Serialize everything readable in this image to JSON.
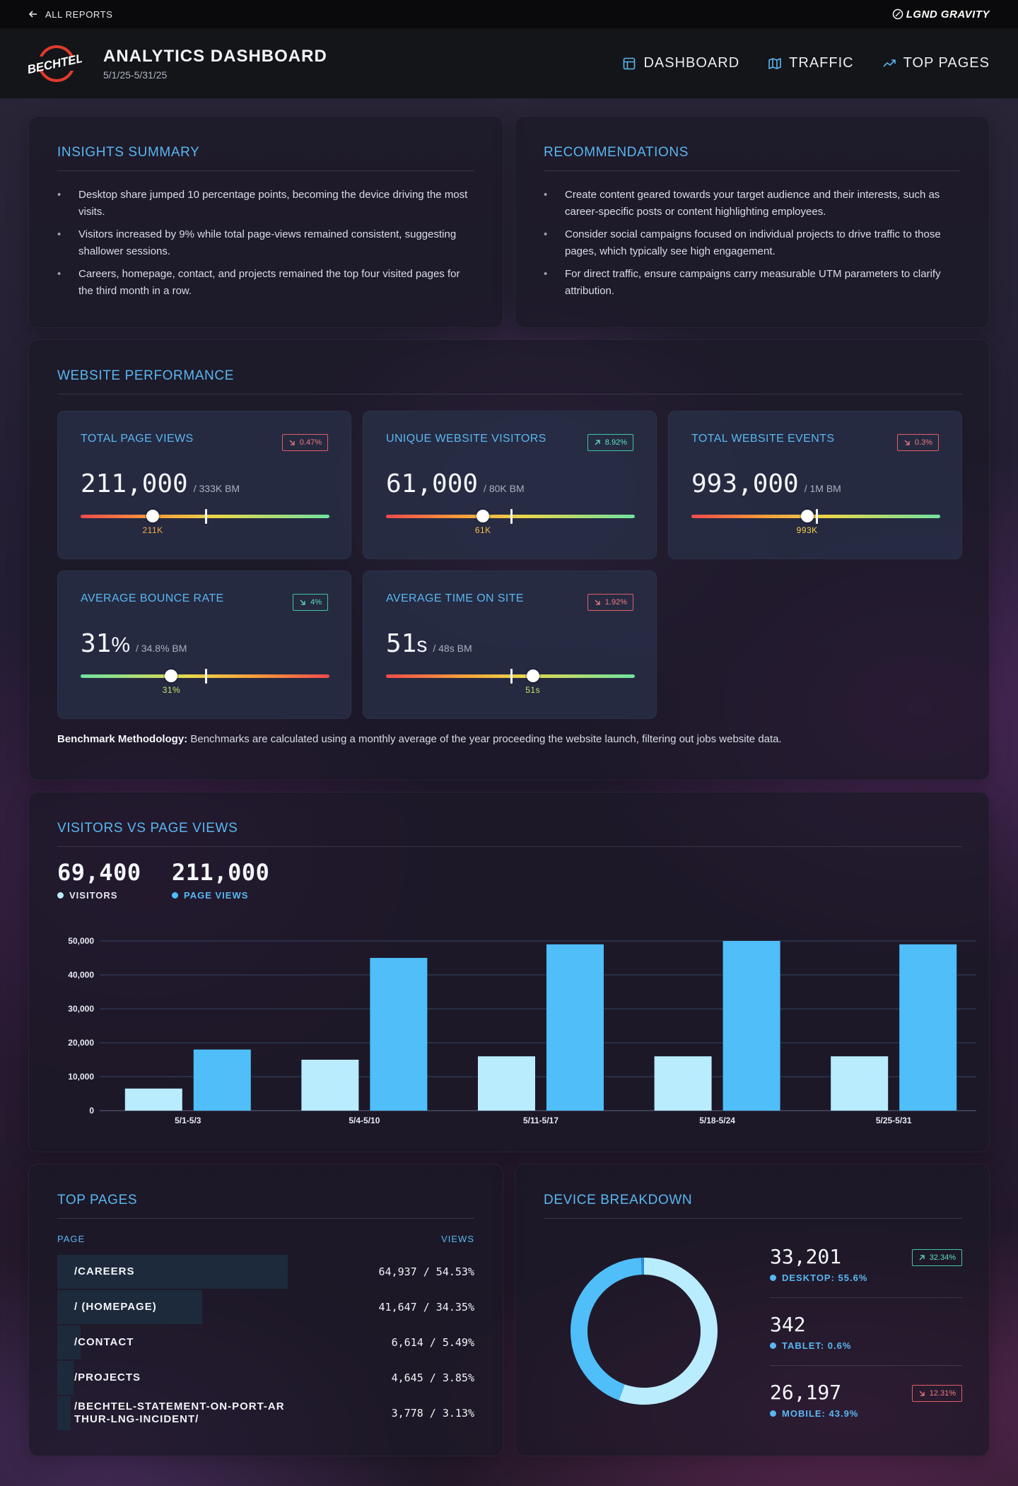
{
  "topbar": {
    "back_label": "ALL REPORTS",
    "brand": "LGND GRAVITY"
  },
  "header": {
    "logo_text": "BECHTEL",
    "title": "ANALYTICS DASHBOARD",
    "date_range": "5/1/25-5/31/25",
    "nav": [
      {
        "label": "DASHBOARD",
        "icon": "layout-icon"
      },
      {
        "label": "TRAFFIC",
        "icon": "map-icon"
      },
      {
        "label": "TOP PAGES",
        "icon": "trending-up-icon"
      }
    ]
  },
  "insights": {
    "title": "INSIGHTS SUMMARY",
    "items": [
      "Desktop share jumped 10 percentage points, becoming the device driving the most visits.",
      "Visitors increased by 9% while total page-views remained consistent, suggesting shallower sessions.",
      "Careers, homepage, contact, and projects remained the top four visited pages for the third month in a row."
    ]
  },
  "recommendations": {
    "title": "RECOMMENDATIONS",
    "items": [
      "Create content geared towards your target audience and their interests, such as career-specific posts or content highlighting employees.",
      "Consider social campaigns focused on individual projects to drive traffic to those pages, which typically see high engagement.",
      "For direct traffic, ensure campaigns carry measurable UTM parameters to clarify attribution."
    ]
  },
  "performance": {
    "title": "WEBSITE PERFORMANCE",
    "kpis": [
      {
        "label": "TOTAL PAGE VIEWS",
        "badge": "0.47%",
        "trend": "down",
        "value": "211,000",
        "unit": "",
        "benchmark": "/ 333K BM",
        "knob_label": "211K",
        "knob_fraction": 0.29,
        "tick_fraction": 0.5,
        "scale": "good",
        "knob_color": "#f5a84a"
      },
      {
        "label": "UNIQUE WEBSITE VISITORS",
        "badge": "8.92%",
        "trend": "up",
        "value": "61,000",
        "unit": "",
        "benchmark": "/ 80K BM",
        "knob_label": "61K",
        "knob_fraction": 0.39,
        "tick_fraction": 0.5,
        "scale": "good",
        "knob_color": "#f5c04a"
      },
      {
        "label": "TOTAL WEBSITE EVENTS",
        "badge": "0.3%",
        "trend": "down",
        "value": "993,000",
        "unit": "",
        "benchmark": "/ 1M BM",
        "knob_label": "993K",
        "knob_fraction": 0.465,
        "tick_fraction": 0.5,
        "scale": "good",
        "knob_color": "#f5d04a"
      },
      {
        "label": "AVERAGE BOUNCE RATE",
        "badge": "4%",
        "trend": "up-green-down",
        "value": "31",
        "unit": "%",
        "benchmark": "/ 34.8% BM",
        "knob_label": "31%",
        "knob_fraction": 0.365,
        "tick_fraction": 0.5,
        "scale": "bad",
        "knob_color": "#c9e36a"
      },
      {
        "label": "AVERAGE TIME ON SITE",
        "badge": "1.92%",
        "trend": "down",
        "value": "51",
        "unit": "s",
        "benchmark": "/ 48s BM",
        "knob_label": "51s",
        "knob_fraction": 0.59,
        "tick_fraction": 0.5,
        "scale": "good",
        "knob_color": "#c9e36a"
      }
    ],
    "methodology_label": "Benchmark Methodology:",
    "methodology_text": "Benchmarks are calculated using a monthly average of the year proceeding the website launch, filtering out jobs website data."
  },
  "visitors_chart": {
    "title": "VISITORS VS PAGE VIEWS",
    "visitors_total": "69,400",
    "visitors_label": "VISITORS",
    "pageviews_total": "211,000",
    "pageviews_label": "PAGE VIEWS"
  },
  "chart_data": {
    "type": "bar",
    "title": "VISITORS VS PAGE VIEWS",
    "categories": [
      "5/1-5/3",
      "5/4-5/10",
      "5/11-5/17",
      "5/18-5/24",
      "5/25-5/31"
    ],
    "series": [
      {
        "name": "VISITORS",
        "color": "#b9ecfd",
        "values": [
          6500,
          15000,
          16000,
          16000,
          16000
        ]
      },
      {
        "name": "PAGE VIEWS",
        "color": "#4fbef9",
        "values": [
          18000,
          45000,
          49000,
          50000,
          49000
        ]
      }
    ],
    "yticks": [
      0,
      10000,
      20000,
      30000,
      40000,
      50000
    ],
    "ytick_labels": [
      "0",
      "10,000",
      "20,000",
      "30,000",
      "40,000",
      "50,000"
    ],
    "ylim": [
      0,
      50000
    ],
    "xlabel": "",
    "ylabel": "",
    "grid": true
  },
  "top_pages": {
    "title": "TOP PAGES",
    "col_page": "PAGE",
    "col_views": "VIEWS",
    "rows": [
      {
        "page": "/CAREERS",
        "value": "64,937 / 54.53%",
        "share": 54.53
      },
      {
        "page": "/ (HOMEPAGE)",
        "value": "41,647 / 34.35%",
        "share": 34.35
      },
      {
        "page": "/CONTACT",
        "value": "6,614 / 5.49%",
        "share": 5.49
      },
      {
        "page": "/PROJECTS",
        "value": "4,645 / 3.85%",
        "share": 3.85
      },
      {
        "page": "/BECHTEL-STATEMENT-ON-PORT-ARTHUR-LNG-INCIDENT/",
        "value": "3,778 / 3.13%",
        "share": 3.13
      }
    ]
  },
  "devices": {
    "title": "DEVICE BREAKDOWN",
    "items": [
      {
        "value": "33,201",
        "label": "DESKTOP: 55.6%",
        "share": 55.6,
        "badge": "32.34%",
        "trend": "up",
        "color": "#b9ecfd"
      },
      {
        "value": "342",
        "label": "TABLET: 0.6%",
        "share": 0.6,
        "badge": "",
        "trend": "",
        "color": "#2a8fd6"
      },
      {
        "value": "26,197",
        "label": "MOBILE: 43.9%",
        "share": 43.9,
        "badge": "12.31%",
        "trend": "down",
        "color": "#4fbef9"
      }
    ]
  },
  "colors": {
    "accent": "#5ab6f0",
    "up": "#5be0bd",
    "down": "#f07a82"
  }
}
